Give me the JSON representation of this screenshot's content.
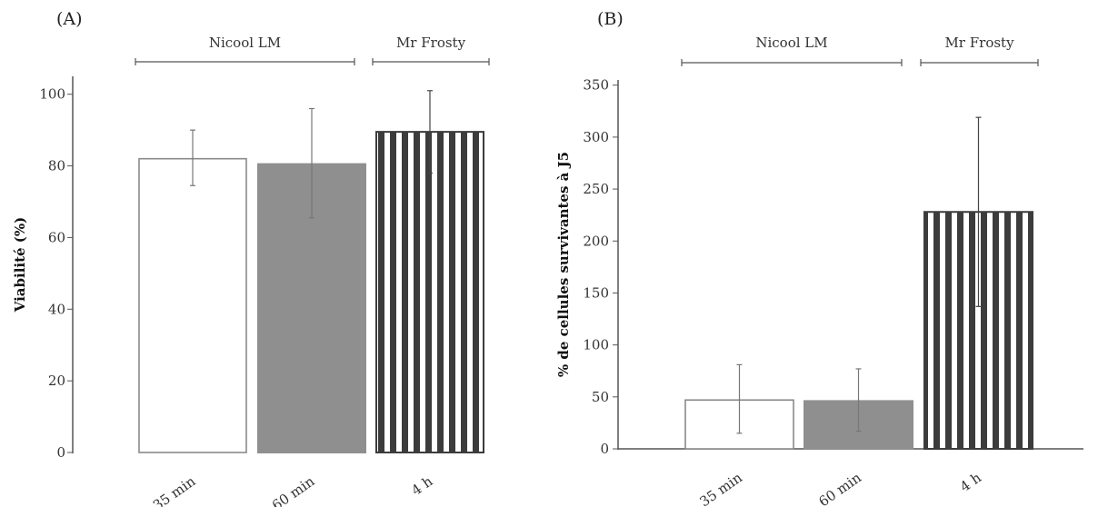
{
  "panels": [
    {
      "letter": "(A)",
      "groups": [
        {
          "label": "Nicool LM",
          "from": 0,
          "to": 1
        },
        {
          "label": "Mr Frosty",
          "from": 2,
          "to": 2
        }
      ]
    },
    {
      "letter": "(B)",
      "groups": [
        {
          "label": "Nicool LM",
          "from": 0,
          "to": 1
        },
        {
          "label": "Mr Frosty",
          "from": 2,
          "to": 2
        }
      ]
    }
  ],
  "colors": {
    "white_bar": "#ffffff",
    "gray_bar": "#8f8f8f",
    "stripe_dark": "#3c3c3c",
    "axis": "#555555",
    "error": "#777777"
  },
  "chart_data": [
    {
      "type": "bar",
      "categories": [
        "35 min",
        "60 min",
        "4 h"
      ],
      "values": [
        82,
        80.5,
        89.5
      ],
      "errors": [
        [
          74.5,
          90
        ],
        [
          65.5,
          96
        ],
        [
          78,
          101
        ]
      ],
      "fills": [
        "white",
        "gray",
        "striped"
      ],
      "ylabel": "Viabilité (%)",
      "xlabel": "",
      "ylim": [
        0,
        105
      ],
      "yticks": [
        0,
        20,
        40,
        60,
        80,
        100
      ],
      "grid": false
    },
    {
      "type": "bar",
      "categories": [
        "35 min",
        "60 min",
        "4 h"
      ],
      "values": [
        47,
        46,
        228
      ],
      "errors": [
        [
          15,
          81
        ],
        [
          17,
          77
        ],
        [
          137,
          319
        ]
      ],
      "fills": [
        "white",
        "gray",
        "striped"
      ],
      "ylabel": "% de cellules survivantes à J5",
      "xlabel": "",
      "ylim": [
        0,
        355
      ],
      "yticks": [
        0,
        50,
        100,
        150,
        200,
        250,
        300,
        350
      ],
      "grid": false
    }
  ]
}
